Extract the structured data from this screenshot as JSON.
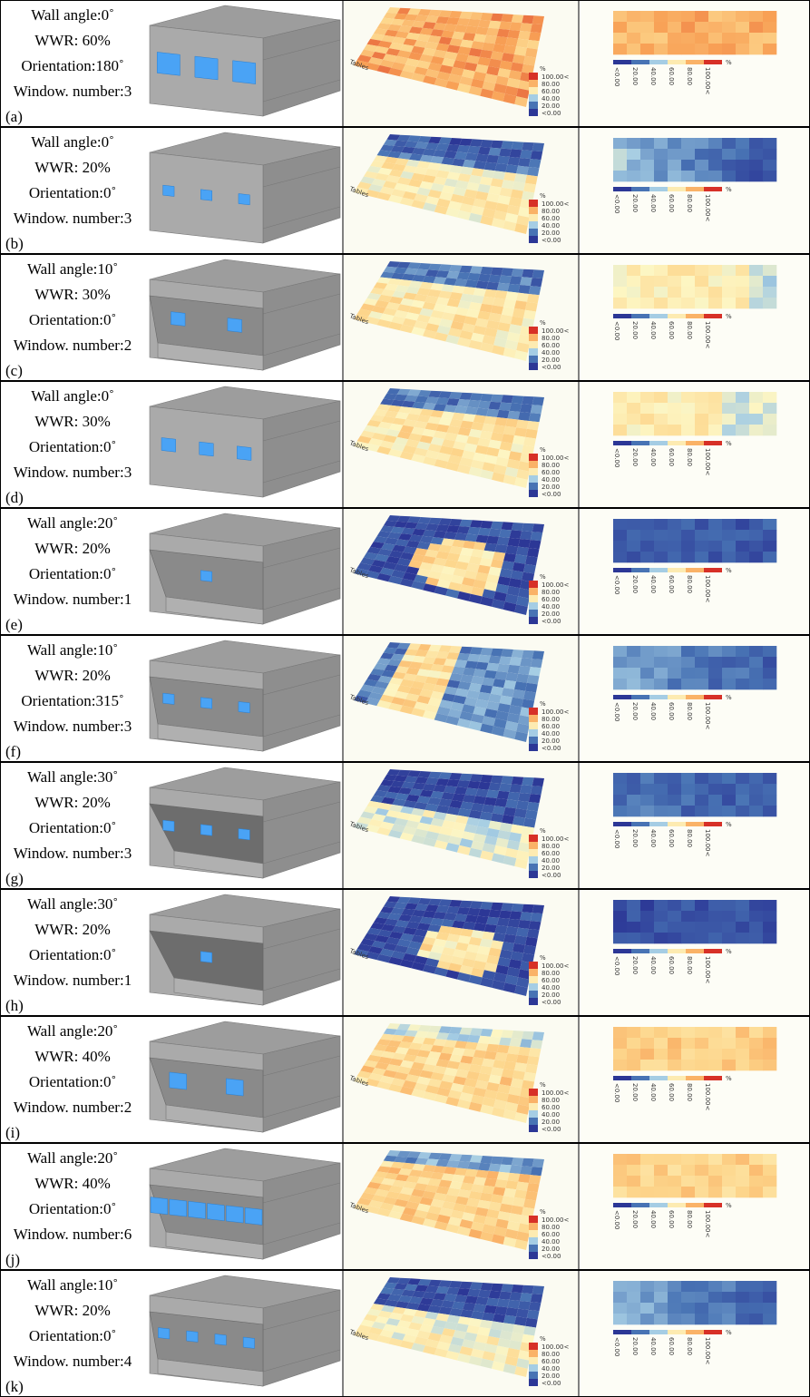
{
  "rows": [
    {
      "wall_angle": "Wall angle:0˚",
      "wwr": "WWR: 60%",
      "orientation": "Orientation:180˚",
      "windows": "Window. number:3",
      "label": "(a)"
    },
    {
      "wall_angle": "Wall angle:0˚",
      "wwr": "WWR: 20%",
      "orientation": "Orientation:0˚",
      "windows": "Window. number:3",
      "label": "(b)"
    },
    {
      "wall_angle": "Wall angle:10˚",
      "wwr": "WWR: 30%",
      "orientation": "Orientation:0˚",
      "windows": "Window. number:2",
      "label": "(c)"
    },
    {
      "wall_angle": "Wall angle:0˚",
      "wwr": "WWR: 30%",
      "orientation": "Orientation:0˚",
      "windows": "Window. number:3",
      "label": "(d)"
    },
    {
      "wall_angle": "Wall angle:20˚",
      "wwr": "WWR: 20%",
      "orientation": "Orientation:0˚",
      "windows": "Window. number:1",
      "label": "(e)"
    },
    {
      "wall_angle": "Wall angle:10˚",
      "wwr": "WWR: 20%",
      "orientation": "Orientation:315˚",
      "windows": "Window. number:3",
      "label": "(f)"
    },
    {
      "wall_angle": "Wall angle:30˚",
      "wwr": "WWR: 20%",
      "orientation": "Orientation:0˚",
      "windows": "Window. number:3",
      "label": "(g)"
    },
    {
      "wall_angle": "Wall angle:30˚",
      "wwr": "WWR: 20%",
      "orientation": "Orientation:0˚",
      "windows": "Window. number:1",
      "label": "(h)"
    },
    {
      "wall_angle": "Wall angle:20˚",
      "wwr": "WWR: 40%",
      "orientation": "Orientation:0˚",
      "windows": "Window. number:2",
      "label": "(i)"
    },
    {
      "wall_angle": "Wall angle:20˚",
      "wwr": "WWR: 40%",
      "orientation": "Orientation:0˚",
      "windows": "Window. number:6",
      "label": "(j)"
    },
    {
      "wall_angle": "Wall angle:10˚",
      "wwr": "WWR: 20%",
      "orientation": "Orientation:0˚",
      "windows": "Window. number:4",
      "label": "(k)"
    }
  ],
  "legend": {
    "unit": "%",
    "levels": [
      "100.00<",
      "80.00",
      "60.00",
      "40.00",
      "20.00",
      "<0.00"
    ],
    "surface": "Tables"
  }
}
